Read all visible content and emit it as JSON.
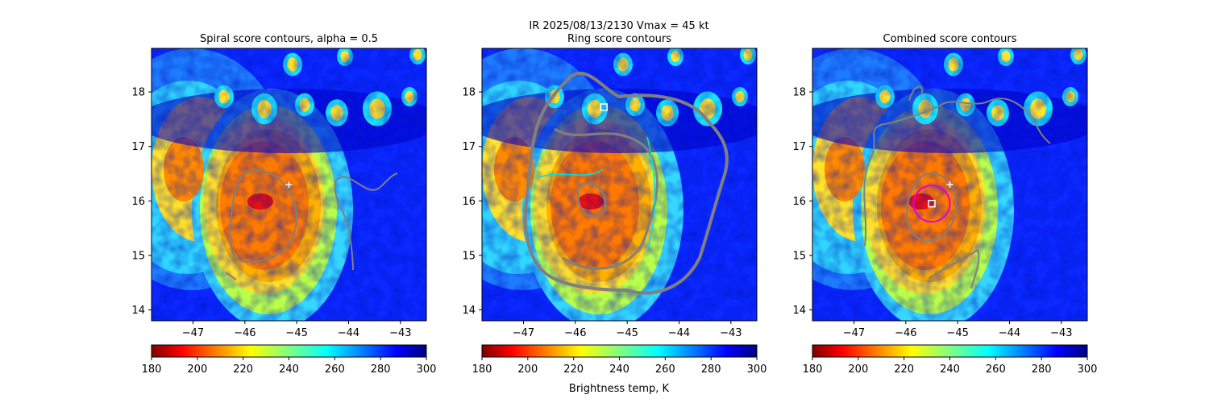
{
  "figure": {
    "suptitle_line1": "IR  2025/08/13/2130    Vmax = 45 kt",
    "colorbar_label": "Brightness temp, K"
  },
  "colors": {
    "contour": "#808080",
    "ring_contour": "#00e0e0",
    "marker": "#ffffff",
    "best_ring": "#e000e0"
  },
  "chart_data": [
    {
      "type": "heatmap",
      "title": "Spiral score contours, alpha =  0.5",
      "x_range": [
        -47.8,
        -42.5
      ],
      "y_range": [
        13.8,
        18.8
      ],
      "x_ticks": [
        -47,
        -46,
        -45,
        -44,
        -43
      ],
      "y_ticks": [
        14,
        15,
        16,
        17,
        18
      ],
      "colorbar": {
        "label": "",
        "range": [
          180,
          300
        ],
        "ticks": [
          180,
          200,
          220,
          240,
          260,
          280,
          300
        ],
        "colormap": "jet_r"
      },
      "markers": [
        {
          "symbol": "plus",
          "x": -45.15,
          "y": 16.3
        }
      ]
    },
    {
      "type": "heatmap",
      "title": "Ring score contours",
      "x_range": [
        -47.8,
        -42.5
      ],
      "y_range": [
        13.8,
        18.8
      ],
      "x_ticks": [
        -47,
        -46,
        -45,
        -44,
        -43
      ],
      "y_ticks": [
        14,
        15,
        16,
        17,
        18
      ],
      "colorbar": {
        "label": "Brightness temp, K",
        "range": [
          180,
          300
        ],
        "ticks": [
          180,
          200,
          220,
          240,
          260,
          280,
          300
        ],
        "colormap": "jet_r"
      },
      "markers": [
        {
          "symbol": "square",
          "x": -45.45,
          "y": 17.72
        }
      ]
    },
    {
      "type": "heatmap",
      "title": "Combined score contours",
      "x_range": [
        -47.8,
        -42.5
      ],
      "y_range": [
        13.8,
        18.8
      ],
      "x_ticks": [
        -47,
        -46,
        -45,
        -44,
        -43
      ],
      "y_ticks": [
        14,
        15,
        16,
        17,
        18
      ],
      "colorbar": {
        "label": "",
        "range": [
          180,
          300
        ],
        "ticks": [
          180,
          200,
          220,
          240,
          260,
          280,
          300
        ],
        "colormap": "jet_r"
      },
      "markers": [
        {
          "symbol": "plus",
          "x": -45.15,
          "y": 16.3
        },
        {
          "symbol": "square",
          "x": -45.5,
          "y": 15.95
        },
        {
          "symbol": "circle",
          "x": -45.5,
          "y": 15.95,
          "radius_deg": 0.35
        }
      ]
    }
  ]
}
